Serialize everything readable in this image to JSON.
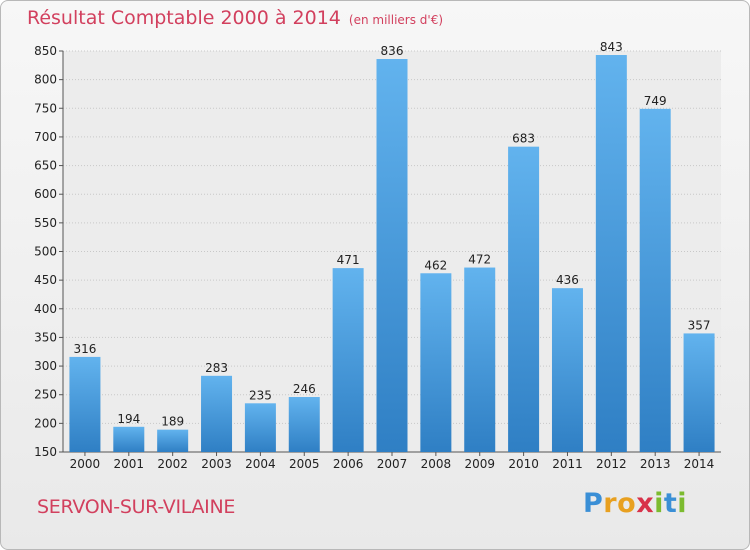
{
  "title": "Résultat Comptable 2000 à 2014",
  "unit": "(en milliers d'€)",
  "commune": "SERVON-SUR-VILAINE",
  "logo": {
    "p": "P",
    "r": "r",
    "o": "o",
    "x": "x",
    "i": "i",
    "t": "t",
    "i2": "i"
  },
  "colors": {
    "title": "#d2405e",
    "bar_top": "#62b3ee",
    "bar_bottom": "#2f7fc4"
  },
  "chart_data": {
    "type": "bar",
    "title": "Résultat Comptable 2000 à 2014",
    "subtitle": "(en milliers d'€)",
    "categories": [
      "2000",
      "2001",
      "2002",
      "2003",
      "2004",
      "2005",
      "2006",
      "2007",
      "2008",
      "2009",
      "2010",
      "2011",
      "2012",
      "2013",
      "2014"
    ],
    "values": [
      316,
      194,
      189,
      283,
      235,
      246,
      471,
      836,
      462,
      472,
      683,
      436,
      843,
      749,
      357
    ],
    "ylim": [
      150,
      850
    ],
    "yticks": [
      150,
      200,
      250,
      300,
      350,
      400,
      450,
      500,
      550,
      600,
      650,
      700,
      750,
      800,
      850
    ],
    "grid": true,
    "xlabel": "",
    "ylabel": ""
  }
}
